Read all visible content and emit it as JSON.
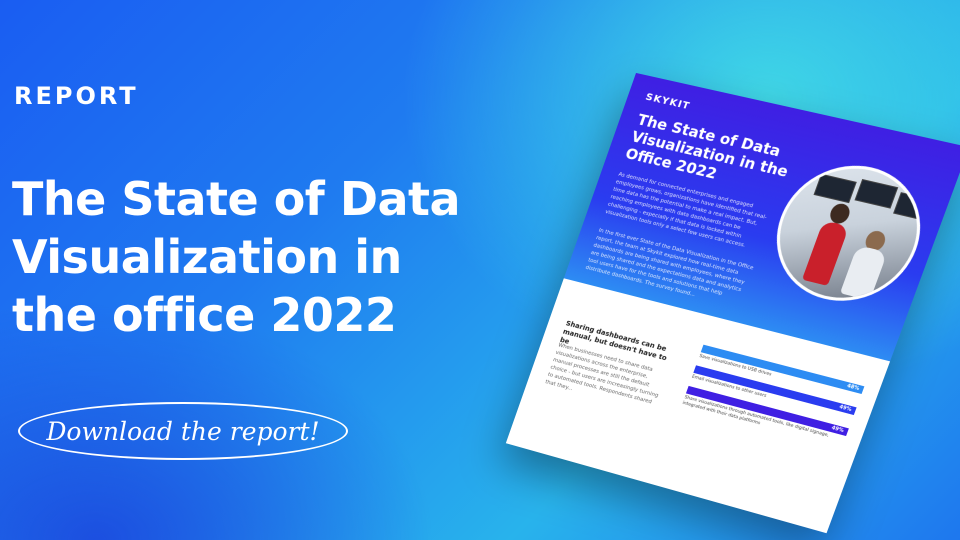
{
  "eyebrow": "REPORT",
  "headline": {
    "line1": "The State of Data",
    "line2": "Visualization in",
    "line3": "the office 2022"
  },
  "cta": {
    "label": "Download the report!"
  },
  "report_mock": {
    "logo": "SKYKIT",
    "title": "The State of Data Visualization in the Office 2022",
    "para1": "As demand for connected enterprises and engaged employees grows, organizations have identified that real-time data has the potential to make a real impact. But, reaching employees with data dashboards can be challenging - especially if that data is locked within visualization tools only a select few users can access.",
    "para2": "In the first ever State of the Data Visualization in the Office report, the team at Skykit explored how real-time data dashboards are being shared with employees, where they are being shared and the expectations data and analytics tool users have for the tools and solutions that help distribute dashboards. The survey found...",
    "subheading": "Sharing dashboards can be manual, but doesn't have to be",
    "sub_body": "When businesses need to share data visualizations across the enterprise, manual processes are still the default choice - but users are increasingly turning to automated tools. Respondents shared that they...",
    "bars": [
      {
        "pct": "48%",
        "label": "Save visualizations to USB drives",
        "color": "#2d8cf3"
      },
      {
        "pct": "49%",
        "label": "Email visualizations to other users",
        "color": "#2a3cf0"
      },
      {
        "pct": "49%",
        "label": "Share visualizations through automated tools, like digital signage, integrated with their data platforms",
        "color": "#3f1fe3"
      }
    ]
  },
  "colors": {
    "accent_blue": "#1a5df2",
    "accent_cyan": "#28b3ec",
    "doc_purple": "#3f1fe3"
  }
}
